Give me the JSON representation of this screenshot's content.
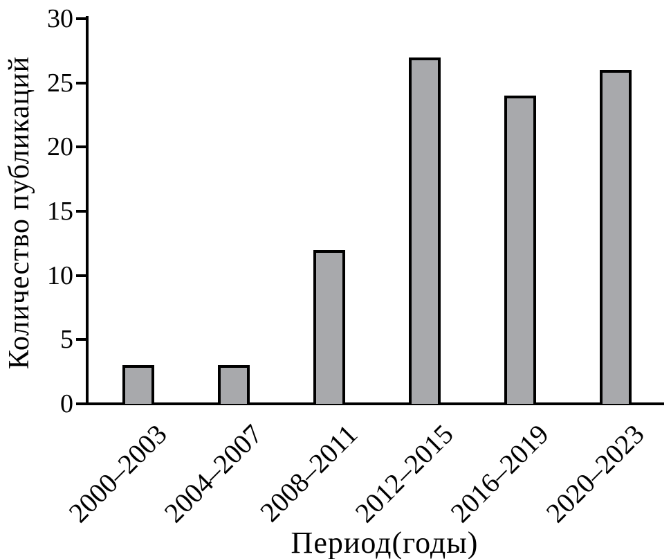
{
  "figure": {
    "background": "#ffffff"
  },
  "chart_data": {
    "type": "bar",
    "title": "",
    "categories": [
      "2000–2003",
      "2004–2007",
      "2008–2011",
      "2012–2015",
      "2016–2019",
      "2020–2023"
    ],
    "values": [
      3,
      3,
      12,
      27,
      24,
      26
    ],
    "xlabel": "Период(годы)",
    "ylabel": "Количество публикаций",
    "yticks": [
      0,
      5,
      10,
      15,
      20,
      25,
      30
    ],
    "ylim": [
      0,
      30
    ],
    "grid": false,
    "legend": "none",
    "bar_fill": "#a8a9ac",
    "bar_border": "#000000",
    "axis_color": "#000000",
    "text_color": "#000000"
  }
}
